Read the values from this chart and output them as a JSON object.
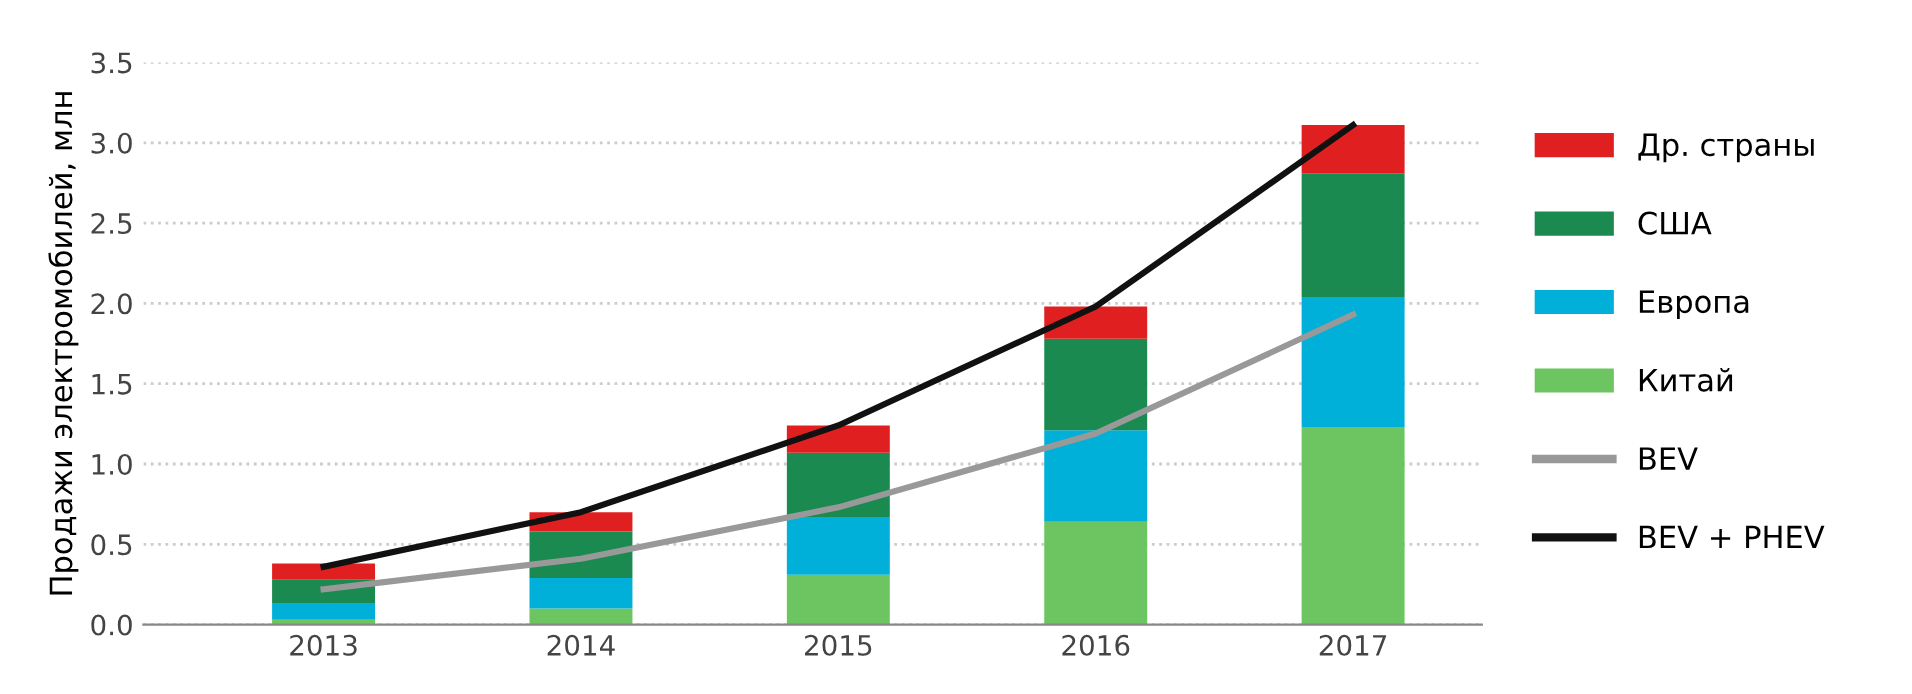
{
  "chart_data": {
    "type": "bar",
    "stacked": true,
    "ylabel": "Продажи электромобилей, млн",
    "categories": [
      "2013",
      "2014",
      "2015",
      "2016",
      "2017"
    ],
    "series": [
      {
        "name": "Китай",
        "color": "#6cc560",
        "values": [
          0.03,
          0.1,
          0.31,
          0.64,
          1.23
        ]
      },
      {
        "name": "Европа",
        "color": "#00b0d8",
        "values": [
          0.1,
          0.19,
          0.36,
          0.57,
          0.81
        ]
      },
      {
        "name": "США",
        "color": "#1a8a50",
        "values": [
          0.15,
          0.29,
          0.4,
          0.57,
          0.77
        ]
      },
      {
        "name": "Др. страны",
        "color": "#e02020",
        "values": [
          0.1,
          0.12,
          0.17,
          0.2,
          0.3
        ]
      },
      {
        "name": "BEV",
        "type": "line",
        "color": "#999999",
        "values": [
          0.22,
          0.41,
          0.73,
          1.19,
          1.93
        ]
      },
      {
        "name": "BEV + PHEV",
        "type": "line",
        "color": "#111111",
        "values": [
          0.36,
          0.7,
          1.24,
          1.98,
          3.11
        ]
      }
    ],
    "ylim": [
      0,
      3.5
    ],
    "yticks": [
      {
        "value": 0,
        "label": "0.0"
      },
      0.5,
      {
        "value": 1,
        "label": "1.0"
      },
      1.5,
      {
        "value": 2,
        "label": "2.0"
      },
      2.5,
      {
        "value": 3,
        "label": "3.0"
      },
      3.5
    ],
    "grid": "y",
    "legend": "right"
  }
}
